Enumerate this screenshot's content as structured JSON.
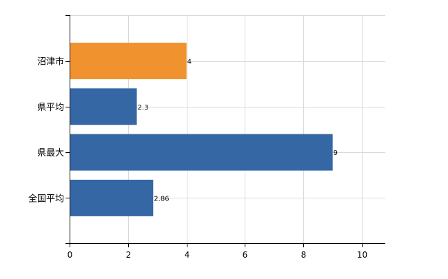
{
  "chart_data": {
    "type": "bar",
    "orientation": "horizontal",
    "categories": [
      "沼津市",
      "県平均",
      "県最大",
      "全国平均"
    ],
    "values": [
      4,
      2.3,
      9,
      2.86
    ],
    "data_labels": [
      "4",
      "2.3",
      "9",
      "2.86"
    ],
    "bar_colors": [
      "#f0922e",
      "#3567a5",
      "#3567a5",
      "#3567a5"
    ],
    "highlight_color": "#f0922e",
    "bar_color": "#3567a5",
    "xlim": [
      0,
      10.8
    ],
    "xticks": [
      0,
      2,
      4,
      6,
      8,
      10
    ],
    "x_tick_labels": [
      "0",
      "2",
      "4",
      "6",
      "8",
      "10"
    ],
    "grid": true,
    "title": "",
    "xlabel": "",
    "ylabel": ""
  }
}
